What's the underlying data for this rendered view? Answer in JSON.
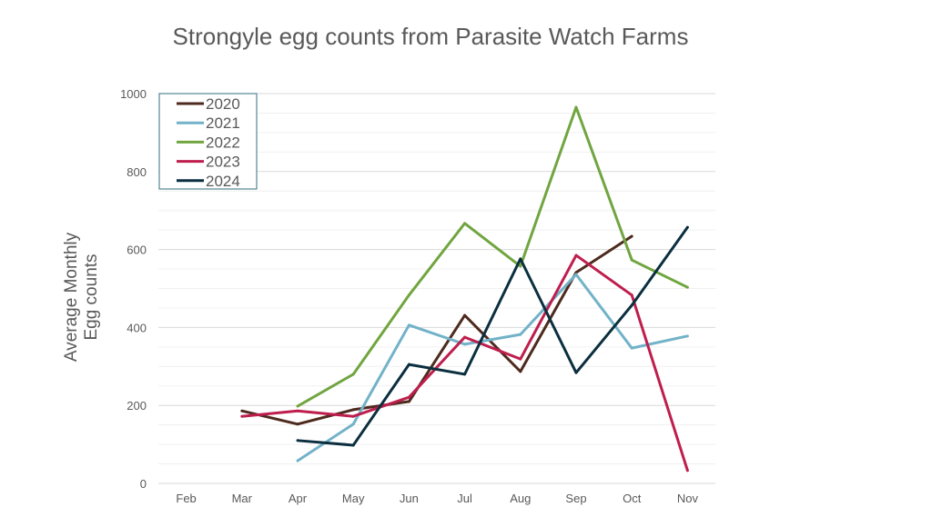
{
  "chart_data": {
    "type": "line",
    "title": "Strongyle egg counts from Parasite Watch Farms",
    "xlabel": "",
    "ylabel_lines": [
      "Average Monthly",
      "Egg counts"
    ],
    "categories": [
      "Feb",
      "Mar",
      "Apr",
      "May",
      "Jun",
      "Jul",
      "Aug",
      "Sep",
      "Oct",
      "Nov"
    ],
    "ylim": [
      0,
      1000
    ],
    "yticks": [
      0,
      200,
      400,
      600,
      800,
      1000
    ],
    "grid": {
      "major": 200,
      "minor": 50
    },
    "legend_position": "top-left",
    "series": [
      {
        "name": "2020",
        "color": "#4e2a1e",
        "values": [
          null,
          186,
          152,
          189,
          210,
          431,
          287,
          541,
          634,
          null
        ]
      },
      {
        "name": "2021",
        "color": "#72b2c8",
        "values": [
          null,
          null,
          58,
          152,
          406,
          357,
          382,
          536,
          347,
          378
        ]
      },
      {
        "name": "2022",
        "color": "#70a53f",
        "values": [
          null,
          null,
          198,
          280,
          483,
          667,
          557,
          965,
          573,
          503
        ]
      },
      {
        "name": "2023",
        "color": "#be1e4d",
        "values": [
          null,
          172,
          186,
          172,
          221,
          375,
          319,
          585,
          483,
          33
        ]
      },
      {
        "name": "2024",
        "color": "#0b2f3f",
        "values": [
          null,
          null,
          110,
          98,
          305,
          280,
          576,
          284,
          457,
          657
        ]
      }
    ]
  }
}
